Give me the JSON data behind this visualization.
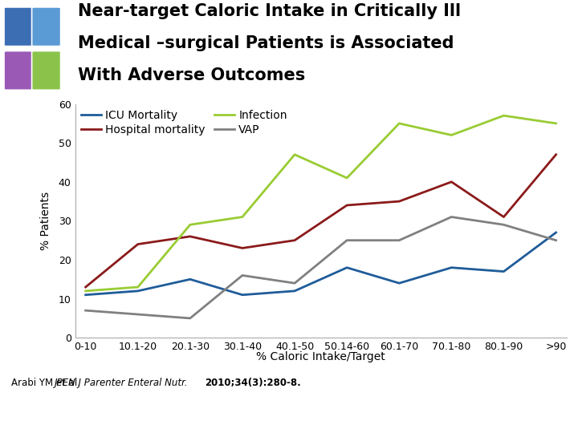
{
  "title_line1": "Near-target Caloric Intake in Critically Ill",
  "title_line2": "Medical –surgical Patients is Associated",
  "title_line3": "With Adverse Outcomes",
  "xlabel": "% Caloric Intake/Target",
  "ylabel": "% Patients",
  "citation": "Arabi YM et al. ",
  "citation_italic": "JPEN J Parenter Enteral Nutr. ",
  "citation_bold": "2010;34(3):280-8.",
  "x_labels": [
    "0-10",
    "10.1-20",
    "20.1-30",
    "30.1-40",
    "40.1-50",
    "50.14-60",
    "60.1-70",
    "70.1-80",
    "80.1-90",
    ">90"
  ],
  "icu_mortality": [
    11,
    12,
    15,
    11,
    12,
    18,
    14,
    18,
    17,
    27
  ],
  "hospital_mortality": [
    13,
    24,
    26,
    23,
    25,
    34,
    35,
    40,
    31,
    47
  ],
  "infection": [
    12,
    13,
    29,
    31,
    47,
    41,
    55,
    52,
    57,
    55
  ],
  "vap": [
    7,
    6,
    5,
    16,
    14,
    25,
    25,
    31,
    29,
    25
  ],
  "color_icu": "#1f5c99",
  "color_hospital": "#8b1a1a",
  "color_infection": "#99cc33",
  "color_vap": "#808080",
  "ylim": [
    0,
    60
  ],
  "yticks": [
    0,
    10,
    20,
    30,
    40,
    50,
    60
  ],
  "bg_color": "#ffffff",
  "bottom_bar_color": "#1a6aad",
  "title_fontsize": 15,
  "axis_fontsize": 10,
  "tick_fontsize": 9,
  "legend_fontsize": 10
}
